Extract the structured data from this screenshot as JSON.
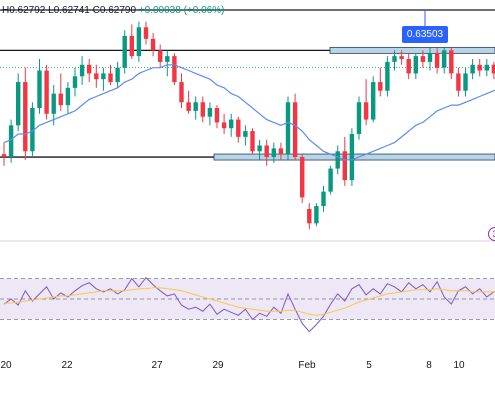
{
  "header": {
    "ohlc_text": "H0.62792  L0.62741  C0.62790 ",
    "change_text": "+0.00038 (+0.06%)"
  },
  "price_tag": "0.63503",
  "indicator_badge": "3",
  "colors": {
    "up": "#089981",
    "down": "#f23645",
    "ma": "#5b8def",
    "rsi_line": "#7e57c2",
    "rsi_ma": "#f7c948",
    "rsi_band": "#ede7f6",
    "zone_fill": "#b7d4e8",
    "zone_edge": "#2c3e50"
  },
  "chart_data": [
    {
      "type": "candlestick",
      "x_ticks": [
        "20",
        "22",
        "27",
        "29",
        "Feb",
        "5",
        "8",
        "10"
      ],
      "y_range": [
        0.6275,
        0.6352
      ],
      "horizontal_levels": [
        0.6352,
        0.6338,
        0.6301
      ],
      "zones": [
        0.6338,
        0.6301
      ],
      "candles": [
        {
          "o": 0.6302,
          "h": 0.6306,
          "l": 0.6298,
          "c": 0.6301
        },
        {
          "o": 0.6301,
          "h": 0.6314,
          "l": 0.6299,
          "c": 0.6312
        },
        {
          "o": 0.6312,
          "h": 0.633,
          "l": 0.631,
          "c": 0.6327
        },
        {
          "o": 0.6327,
          "h": 0.6332,
          "l": 0.63,
          "c": 0.6303
        },
        {
          "o": 0.6303,
          "h": 0.632,
          "l": 0.6301,
          "c": 0.6318
        },
        {
          "o": 0.6318,
          "h": 0.6335,
          "l": 0.6316,
          "c": 0.6331
        },
        {
          "o": 0.6331,
          "h": 0.6333,
          "l": 0.6314,
          "c": 0.6316
        },
        {
          "o": 0.6316,
          "h": 0.6326,
          "l": 0.6312,
          "c": 0.6323
        },
        {
          "o": 0.6323,
          "h": 0.633,
          "l": 0.6317,
          "c": 0.6319
        },
        {
          "o": 0.6319,
          "h": 0.6327,
          "l": 0.6316,
          "c": 0.6325
        },
        {
          "o": 0.6325,
          "h": 0.6332,
          "l": 0.6322,
          "c": 0.6329
        },
        {
          "o": 0.6329,
          "h": 0.6336,
          "l": 0.6326,
          "c": 0.6333
        },
        {
          "o": 0.6333,
          "h": 0.6335,
          "l": 0.6327,
          "c": 0.633
        },
        {
          "o": 0.633,
          "h": 0.6333,
          "l": 0.6325,
          "c": 0.6328
        },
        {
          "o": 0.6328,
          "h": 0.6332,
          "l": 0.6324,
          "c": 0.633
        },
        {
          "o": 0.633,
          "h": 0.6333,
          "l": 0.6326,
          "c": 0.6327
        },
        {
          "o": 0.6327,
          "h": 0.6334,
          "l": 0.6325,
          "c": 0.6332
        },
        {
          "o": 0.6332,
          "h": 0.6345,
          "l": 0.633,
          "c": 0.6343
        },
        {
          "o": 0.6343,
          "h": 0.6347,
          "l": 0.6335,
          "c": 0.6336
        },
        {
          "o": 0.6336,
          "h": 0.6348,
          "l": 0.6334,
          "c": 0.6346
        },
        {
          "o": 0.6346,
          "h": 0.6348,
          "l": 0.634,
          "c": 0.6342
        },
        {
          "o": 0.6342,
          "h": 0.6344,
          "l": 0.6336,
          "c": 0.6338
        },
        {
          "o": 0.6338,
          "h": 0.634,
          "l": 0.6332,
          "c": 0.6334
        },
        {
          "o": 0.6334,
          "h": 0.6338,
          "l": 0.6329,
          "c": 0.6336
        },
        {
          "o": 0.6336,
          "h": 0.6337,
          "l": 0.6326,
          "c": 0.6327
        },
        {
          "o": 0.6327,
          "h": 0.633,
          "l": 0.6318,
          "c": 0.632
        },
        {
          "o": 0.632,
          "h": 0.6324,
          "l": 0.6316,
          "c": 0.6317
        },
        {
          "o": 0.6317,
          "h": 0.6322,
          "l": 0.6314,
          "c": 0.632
        },
        {
          "o": 0.632,
          "h": 0.6322,
          "l": 0.6313,
          "c": 0.6315
        },
        {
          "o": 0.6315,
          "h": 0.632,
          "l": 0.6312,
          "c": 0.6318
        },
        {
          "o": 0.6318,
          "h": 0.6319,
          "l": 0.6311,
          "c": 0.6313
        },
        {
          "o": 0.6313,
          "h": 0.6316,
          "l": 0.6309,
          "c": 0.6311
        },
        {
          "o": 0.6311,
          "h": 0.6316,
          "l": 0.6308,
          "c": 0.6314
        },
        {
          "o": 0.6314,
          "h": 0.6315,
          "l": 0.6306,
          "c": 0.6308
        },
        {
          "o": 0.6308,
          "h": 0.6312,
          "l": 0.6305,
          "c": 0.631
        },
        {
          "o": 0.631,
          "h": 0.6311,
          "l": 0.6302,
          "c": 0.6303
        },
        {
          "o": 0.6303,
          "h": 0.6307,
          "l": 0.63,
          "c": 0.6305
        },
        {
          "o": 0.6305,
          "h": 0.6307,
          "l": 0.6298,
          "c": 0.6301
        },
        {
          "o": 0.6301,
          "h": 0.6306,
          "l": 0.6299,
          "c": 0.6304
        },
        {
          "o": 0.6304,
          "h": 0.6306,
          "l": 0.63,
          "c": 0.6302
        },
        {
          "o": 0.6302,
          "h": 0.6322,
          "l": 0.63,
          "c": 0.632
        },
        {
          "o": 0.632,
          "h": 0.6323,
          "l": 0.63,
          "c": 0.6301
        },
        {
          "o": 0.6301,
          "h": 0.6302,
          "l": 0.6285,
          "c": 0.6287
        },
        {
          "o": 0.6283,
          "h": 0.6285,
          "l": 0.6276,
          "c": 0.6278
        },
        {
          "o": 0.6278,
          "h": 0.6285,
          "l": 0.6277,
          "c": 0.6284
        },
        {
          "o": 0.6284,
          "h": 0.6291,
          "l": 0.6282,
          "c": 0.6289
        },
        {
          "o": 0.6289,
          "h": 0.6298,
          "l": 0.6288,
          "c": 0.6297
        },
        {
          "o": 0.6297,
          "h": 0.6305,
          "l": 0.6295,
          "c": 0.6303
        },
        {
          "o": 0.6303,
          "h": 0.6308,
          "l": 0.6291,
          "c": 0.6293
        },
        {
          "o": 0.6293,
          "h": 0.6311,
          "l": 0.6291,
          "c": 0.6309
        },
        {
          "o": 0.6309,
          "h": 0.6322,
          "l": 0.6307,
          "c": 0.632
        },
        {
          "o": 0.632,
          "h": 0.6328,
          "l": 0.6312,
          "c": 0.6314
        },
        {
          "o": 0.6314,
          "h": 0.6329,
          "l": 0.6313,
          "c": 0.6327
        },
        {
          "o": 0.6327,
          "h": 0.6332,
          "l": 0.6322,
          "c": 0.6324
        },
        {
          "o": 0.6324,
          "h": 0.6336,
          "l": 0.6322,
          "c": 0.6334
        },
        {
          "o": 0.6334,
          "h": 0.6338,
          "l": 0.6331,
          "c": 0.6336
        },
        {
          "o": 0.6336,
          "h": 0.6338,
          "l": 0.6333,
          "c": 0.6335
        },
        {
          "o": 0.6335,
          "h": 0.6337,
          "l": 0.6328,
          "c": 0.633
        },
        {
          "o": 0.633,
          "h": 0.6337,
          "l": 0.6328,
          "c": 0.6336
        },
        {
          "o": 0.6336,
          "h": 0.6338,
          "l": 0.6332,
          "c": 0.6334
        },
        {
          "o": 0.6334,
          "h": 0.6339,
          "l": 0.6331,
          "c": 0.6337
        },
        {
          "o": 0.6337,
          "h": 0.6339,
          "l": 0.633,
          "c": 0.6332
        },
        {
          "o": 0.6332,
          "h": 0.6339,
          "l": 0.633,
          "c": 0.6338
        },
        {
          "o": 0.6338,
          "h": 0.6339,
          "l": 0.6328,
          "c": 0.633
        },
        {
          "o": 0.633,
          "h": 0.6332,
          "l": 0.6322,
          "c": 0.6324
        },
        {
          "o": 0.6324,
          "h": 0.6332,
          "l": 0.6322,
          "c": 0.633
        },
        {
          "o": 0.633,
          "h": 0.6335,
          "l": 0.6328,
          "c": 0.6333
        },
        {
          "o": 0.6333,
          "h": 0.6335,
          "l": 0.6329,
          "c": 0.6331
        },
        {
          "o": 0.6331,
          "h": 0.6335,
          "l": 0.6329,
          "c": 0.6333
        },
        {
          "o": 0.6333,
          "h": 0.6334,
          "l": 0.6328,
          "c": 0.633
        },
        {
          "o": 0.633,
          "h": 0.6333,
          "l": 0.6328,
          "c": 0.6332
        }
      ],
      "moving_average": [
        0.6306,
        0.6307,
        0.6309,
        0.6309,
        0.631,
        0.6312,
        0.6313,
        0.6314,
        0.6315,
        0.6316,
        0.6317,
        0.6319,
        0.6321,
        0.6322,
        0.6323,
        0.6324,
        0.6325,
        0.6327,
        0.6328,
        0.633,
        0.6331,
        0.6332,
        0.6332,
        0.6333,
        0.6333,
        0.6332,
        0.6331,
        0.633,
        0.6329,
        0.6328,
        0.6326,
        0.6325,
        0.6323,
        0.6322,
        0.632,
        0.6318,
        0.6316,
        0.6314,
        0.6313,
        0.6312,
        0.6313,
        0.6312,
        0.631,
        0.6307,
        0.6305,
        0.6303,
        0.6302,
        0.6301,
        0.63,
        0.63,
        0.6301,
        0.6302,
        0.6303,
        0.6304,
        0.6305,
        0.6306,
        0.6308,
        0.631,
        0.6312,
        0.6313,
        0.6315,
        0.6317,
        0.6318,
        0.6319,
        0.6319,
        0.632,
        0.6321,
        0.6322,
        0.6323,
        0.6324,
        0.6325
      ]
    },
    {
      "type": "line",
      "y_range": [
        0,
        100
      ],
      "levels": [
        70,
        50,
        30
      ],
      "series": [
        {
          "values": [
            45,
            50,
            44,
            58,
            48,
            55,
            62,
            50,
            56,
            52,
            58,
            63,
            66,
            60,
            57,
            60,
            55,
            59,
            70,
            62,
            71,
            64,
            58,
            53,
            55,
            44,
            40,
            42,
            38,
            45,
            35,
            40,
            37,
            34,
            40,
            30,
            36,
            33,
            42,
            36,
            55,
            40,
            26,
            18,
            25,
            33,
            45,
            55,
            48,
            60,
            64,
            54,
            60,
            55,
            65,
            62,
            57,
            66,
            60,
            64,
            57,
            67,
            52,
            45,
            58,
            62,
            55,
            60,
            52,
            57,
            58
          ]
        },
        {
          "values": [
            46,
            46,
            47,
            48,
            49,
            50,
            51,
            52,
            53,
            53,
            54,
            55,
            56,
            57,
            58,
            58,
            58,
            58,
            59,
            60,
            60,
            61,
            61,
            60,
            59,
            58,
            56,
            54,
            52,
            50,
            48,
            46,
            44,
            42,
            41,
            40,
            39,
            38,
            38,
            38,
            39,
            39,
            37,
            35,
            34,
            35,
            37,
            39,
            41,
            44,
            47,
            49,
            51,
            53,
            55,
            56,
            57,
            58,
            59,
            59,
            59,
            60,
            59,
            58,
            58,
            58,
            57,
            57,
            57,
            57,
            57
          ]
        }
      ]
    }
  ]
}
